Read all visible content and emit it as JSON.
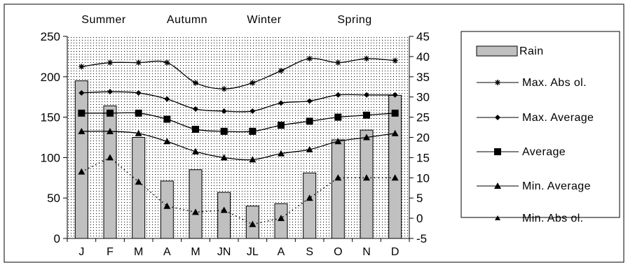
{
  "chart_data": {
    "type": "combo",
    "categories": [
      "J",
      "F",
      "M",
      "A",
      "M",
      "JN",
      "JL",
      "A",
      "S",
      "O",
      "N",
      "D"
    ],
    "seasons": [
      "Summer",
      "Autumn",
      "Winter",
      "Spring"
    ],
    "left_axis": {
      "min": 0,
      "max": 250,
      "ticks": [
        "0",
        "50",
        "100",
        "150",
        "200",
        "250"
      ]
    },
    "right_axis": {
      "min": -5,
      "max": 45,
      "ticks": [
        "-5",
        "0",
        "5",
        "10",
        "15",
        "20",
        "25",
        "30",
        "35",
        "40",
        "45"
      ]
    },
    "bars": {
      "name": "Rain",
      "axis": "left",
      "color": "#c0c0c0",
      "values": [
        195,
        164,
        125,
        71,
        85,
        57,
        40,
        43,
        81,
        122,
        134,
        177
      ]
    },
    "series": [
      {
        "name": "Max. Abs ol.",
        "axis": "right",
        "marker": "star",
        "line": "smooth",
        "values": [
          37.5,
          38.5,
          38.5,
          38.5,
          33.5,
          32,
          33.5,
          36.5,
          39.5,
          38.5,
          39.5,
          39
        ]
      },
      {
        "name": "Max. Average",
        "axis": "right",
        "marker": "diamond",
        "line": "smooth",
        "values": [
          31,
          31.3,
          31,
          29.5,
          27,
          26.5,
          26.5,
          28.5,
          29,
          30.5,
          30.5,
          30.5
        ]
      },
      {
        "name": "Average",
        "axis": "right",
        "marker": "square",
        "line": "smooth",
        "values": [
          26,
          26,
          26,
          24.5,
          22,
          21.5,
          21.5,
          23,
          24,
          25,
          25.5,
          26
        ]
      },
      {
        "name": "Min. Average",
        "axis": "right",
        "marker": "triangle",
        "line": "smooth",
        "values": [
          21.5,
          21.5,
          21,
          19,
          16.5,
          15,
          14.5,
          16,
          17,
          19,
          20,
          21
        ]
      },
      {
        "name": "Min. Abs ol.",
        "axis": "right",
        "marker": "triangle",
        "line": "dotted",
        "values": [
          11.5,
          15,
          9,
          3,
          1.5,
          2,
          -1.5,
          0,
          5,
          10,
          10,
          10
        ]
      }
    ],
    "background": "dotted",
    "legend_position": "right"
  }
}
